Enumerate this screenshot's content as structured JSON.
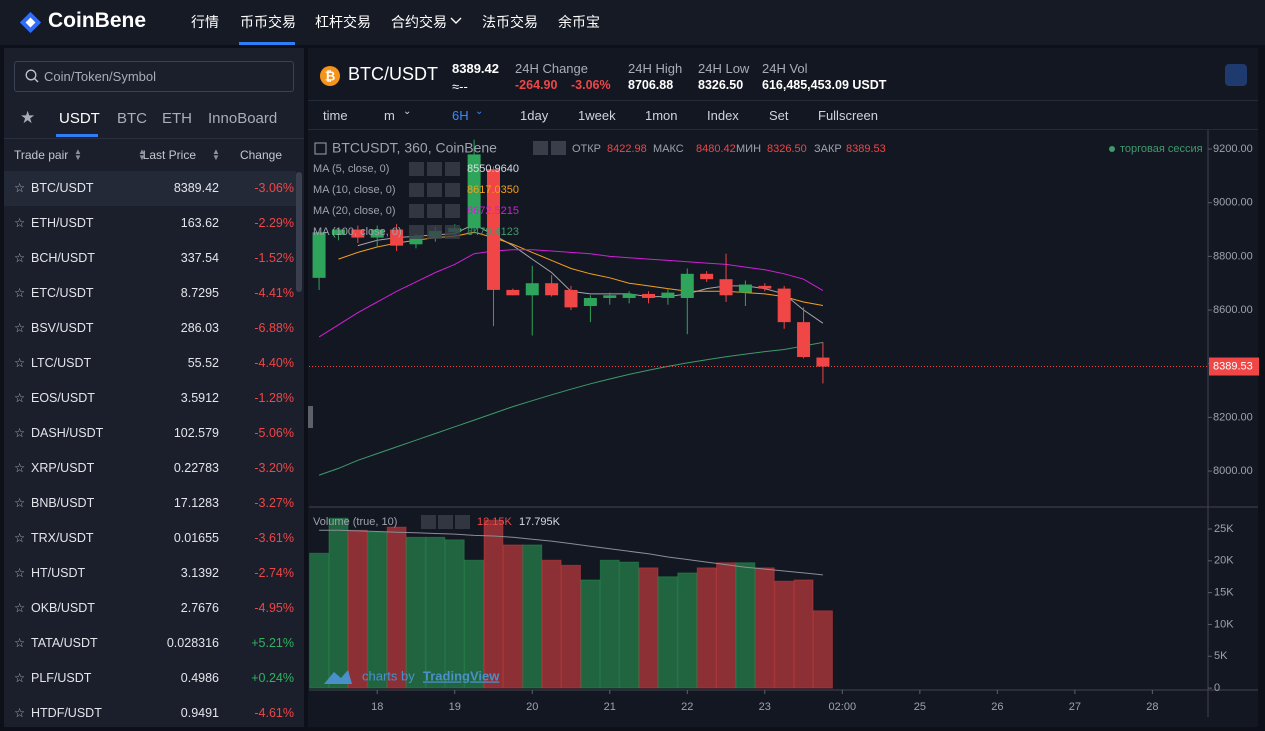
{
  "nav": {
    "logo": "CoinBene",
    "menu": [
      "行情",
      "币币交易",
      "杠杆交易",
      "合约交易",
      "法币交易",
      "余币宝"
    ]
  },
  "sidebar": {
    "search_placeholder": "Coin/Token/Symbol",
    "tabs": [
      "USDT",
      "BTC",
      "ETH",
      "InnoBoard"
    ],
    "columns": [
      "Trade pair",
      "Last Price",
      "Change"
    ],
    "rows": [
      [
        "BTC/USDT",
        "8389.42",
        "-3.06%"
      ],
      [
        "ETH/USDT",
        "163.62",
        "-2.29%"
      ],
      [
        "BCH/USDT",
        "337.54",
        "-1.52%"
      ],
      [
        "ETC/USDT",
        "8.7295",
        "-4.41%"
      ],
      [
        "BSV/USDT",
        "286.03",
        "-6.88%"
      ],
      [
        "LTC/USDT",
        "55.52",
        "-4.40%"
      ],
      [
        "EOS/USDT",
        "3.5912",
        "-1.28%"
      ],
      [
        "DASH/USDT",
        "102.579",
        "-5.06%"
      ],
      [
        "XRP/USDT",
        "0.22783",
        "-3.20%"
      ],
      [
        "BNB/USDT",
        "17.1283",
        "-3.27%"
      ],
      [
        "TRX/USDT",
        "0.01655",
        "-3.61%"
      ],
      [
        "HT/USDT",
        "3.1392",
        "-2.74%"
      ],
      [
        "OKB/USDT",
        "2.7676",
        "-4.95%"
      ],
      [
        "TATA/USDT",
        "0.028316",
        "+5.21%"
      ],
      [
        "PLF/USDT",
        "0.4986",
        "+0.24%"
      ],
      [
        "HTDF/USDT",
        "0.9491",
        "-4.61%"
      ]
    ]
  },
  "ticker": {
    "pair": "BTC/USDT",
    "price": "8389.42",
    "approx": "≈--",
    "stats": [
      {
        "label": "24H Change",
        "values": [
          "-264.90",
          "-3.06%"
        ]
      },
      {
        "label": "24H High",
        "values": [
          "8706.88"
        ]
      },
      {
        "label": "24H Low",
        "values": [
          "8326.50"
        ]
      },
      {
        "label": "24H Vol",
        "values": [
          "616,485,453.09 USDT"
        ]
      }
    ]
  },
  "toolbar": [
    "time",
    "m",
    "6H",
    "1day",
    "1week",
    "1mon",
    "Index",
    "Set",
    "Fullscreen"
  ],
  "chart": {
    "type": "candlestick",
    "title": "BTCUSDT, 360, CoinBene",
    "session": "торговая сессия",
    "ohlc_legend": [
      {
        "label": "ОТКР",
        "value": "8422.98"
      },
      {
        "label": "МАКС",
        "value": "8480.42"
      },
      {
        "label": "МИН",
        "value": "8326.50"
      },
      {
        "label": "ЗАКР",
        "value": "8389.53"
      }
    ],
    "up_color": "#2ea55a",
    "down_color": "#f04646",
    "xlim": [
      -0.52,
      45.87
    ],
    "xticks": [
      {
        "value": 3,
        "label": "18"
      },
      {
        "value": 7,
        "label": "19"
      },
      {
        "value": 11,
        "label": "20"
      },
      {
        "value": 15,
        "label": "21"
      },
      {
        "value": 19,
        "label": "22"
      },
      {
        "value": 23,
        "label": "23"
      },
      {
        "value": 27,
        "label": "02:00"
      },
      {
        "value": 31,
        "label": "25"
      },
      {
        "value": 35,
        "label": "26"
      },
      {
        "value": 39,
        "label": "27"
      },
      {
        "value": 43,
        "label": "28"
      }
    ],
    "ylim": [
      7866,
      9271
    ],
    "yticks": [
      {
        "value": 8000,
        "label": "8000.00"
      },
      {
        "value": 8200,
        "label": "8200.00"
      },
      {
        "value": 8400,
        "label": "8400.00"
      },
      {
        "value": 8600,
        "label": "8600.00"
      },
      {
        "value": 8800,
        "label": "8800.00"
      },
      {
        "value": 9000,
        "label": "9000.00"
      },
      {
        "value": 9200,
        "label": "9200.00"
      }
    ],
    "candles": [
      {
        "open": 8720,
        "high": 8895,
        "low": 8675,
        "close": 8890
      },
      {
        "open": 8880,
        "high": 8905,
        "low": 8860,
        "close": 8900
      },
      {
        "open": 8900,
        "high": 8915,
        "low": 8850,
        "close": 8870
      },
      {
        "open": 8870,
        "high": 8915,
        "low": 8835,
        "close": 8900
      },
      {
        "open": 8900,
        "high": 8920,
        "low": 8820,
        "close": 8840
      },
      {
        "open": 8845,
        "high": 8885,
        "low": 8830,
        "close": 8875
      },
      {
        "open": 8870,
        "high": 8910,
        "low": 8855,
        "close": 8895
      },
      {
        "open": 8890,
        "high": 8920,
        "low": 8870,
        "close": 8905
      },
      {
        "open": 8905,
        "high": 9235,
        "low": 8895,
        "close": 9180
      },
      {
        "open": 9125,
        "high": 9135,
        "low": 8540,
        "close": 8675
      },
      {
        "open": 8675,
        "high": 8680,
        "low": 8655,
        "close": 8655
      },
      {
        "open": 8655,
        "high": 8765,
        "low": 8505,
        "close": 8700
      },
      {
        "open": 8700,
        "high": 8730,
        "low": 8650,
        "close": 8655
      },
      {
        "open": 8675,
        "high": 8690,
        "low": 8600,
        "close": 8610
      },
      {
        "open": 8615,
        "high": 8655,
        "low": 8555,
        "close": 8645
      },
      {
        "open": 8645,
        "high": 8665,
        "low": 8620,
        "close": 8655
      },
      {
        "open": 8645,
        "high": 8670,
        "low": 8625,
        "close": 8660
      },
      {
        "open": 8660,
        "high": 8670,
        "low": 8625,
        "close": 8645
      },
      {
        "open": 8645,
        "high": 8680,
        "low": 8620,
        "close": 8665
      },
      {
        "open": 8645,
        "high": 8755,
        "low": 8510,
        "close": 8735
      },
      {
        "open": 8735,
        "high": 8745,
        "low": 8705,
        "close": 8715
      },
      {
        "open": 8715,
        "high": 8810,
        "low": 8630,
        "close": 8655
      },
      {
        "open": 8665,
        "high": 8710,
        "low": 8615,
        "close": 8695
      },
      {
        "open": 8690,
        "high": 8700,
        "low": 8670,
        "close": 8680
      },
      {
        "open": 8680,
        "high": 8690,
        "low": 8530,
        "close": 8555
      },
      {
        "open": 8555,
        "high": 8610,
        "low": 8420,
        "close": 8425
      },
      {
        "open": 8422.98,
        "high": 8480.42,
        "low": 8326.5,
        "close": 8389.53
      }
    ],
    "indicators": [
      {
        "name": "MA (5, close, 0)",
        "value_label": "8550.9640",
        "color": "#a3a6af",
        "values": [
          null,
          null,
          8840,
          8860,
          8870,
          8875,
          8880,
          8885,
          8920,
          8880,
          8840,
          8790,
          8740,
          8670,
          8660,
          8660,
          8660,
          8650,
          8650,
          8660,
          8680,
          8690,
          8690,
          8680,
          8660,
          8600,
          8550.964
        ]
      },
      {
        "name": "MA (10, close, 0)",
        "value_label": "8617.0350",
        "color": "#f5a01a",
        "values": [
          null,
          8790,
          8815,
          8835,
          8850,
          8860,
          8870,
          8875,
          8890,
          8870,
          8845,
          8815,
          8785,
          8755,
          8735,
          8720,
          8700,
          8690,
          8680,
          8670,
          8670,
          8670,
          8665,
          8660,
          8650,
          8630,
          8617.035
        ]
      },
      {
        "name": "MA (20, close, 0)",
        "value_label": "8672.5215",
        "color": "#d21fd8",
        "values": [
          8500,
          8545,
          8590,
          8630,
          8670,
          8705,
          8740,
          8770,
          8810,
          8820,
          8825,
          8825,
          8820,
          8815,
          8810,
          8800,
          8795,
          8790,
          8785,
          8780,
          8775,
          8770,
          8760,
          8750,
          8735,
          8715,
          8672.5215
        ]
      },
      {
        "name": "MA (100, close, 0)",
        "value_label": "8479.4123",
        "color": "#3e9a6c",
        "values": [
          7985,
          8010,
          8040,
          8065,
          8090,
          8115,
          8140,
          8165,
          8190,
          8215,
          8240,
          8262,
          8284,
          8305,
          8325,
          8343,
          8360,
          8376,
          8390,
          8403,
          8415,
          8426,
          8436,
          8445,
          8453,
          8466,
          8479.4123
        ]
      }
    ],
    "price_tag": {
      "value": 8389.53,
      "label": "8389.53"
    },
    "volume": {
      "name": "Volume (true, 10)",
      "last_labels": [
        "12.15K",
        "17.795K"
      ],
      "values": [
        21200,
        26700,
        24800,
        24500,
        25300,
        23700,
        23700,
        23300,
        20100,
        26400,
        22500,
        22500,
        20100,
        19300,
        17000,
        20100,
        19800,
        18900,
        17500,
        18100,
        18900,
        19700,
        19700,
        18900,
        16800,
        17000,
        12150
      ],
      "ma": [
        24800,
        24800,
        24700,
        24600,
        24500,
        24400,
        24300,
        24200,
        24000,
        23900,
        23700,
        23400,
        23100,
        22700,
        22300,
        21900,
        21500,
        21100,
        20600,
        20200,
        19800,
        19400,
        19000,
        18700,
        18400,
        18100,
        17795
      ],
      "ylim": [
        -300,
        28300
      ],
      "yticks": [
        0,
        {
          "value": 5000,
          "label": "5K"
        },
        {
          "value": 10000,
          "label": "10K"
        },
        {
          "value": 15000,
          "label": "15K"
        },
        {
          "value": 20000,
          "label": "20K"
        },
        {
          "value": 25000,
          "label": "25K"
        }
      ]
    },
    "watermark": {
      "prefix": "charts by",
      "brand": "TradingView"
    }
  }
}
